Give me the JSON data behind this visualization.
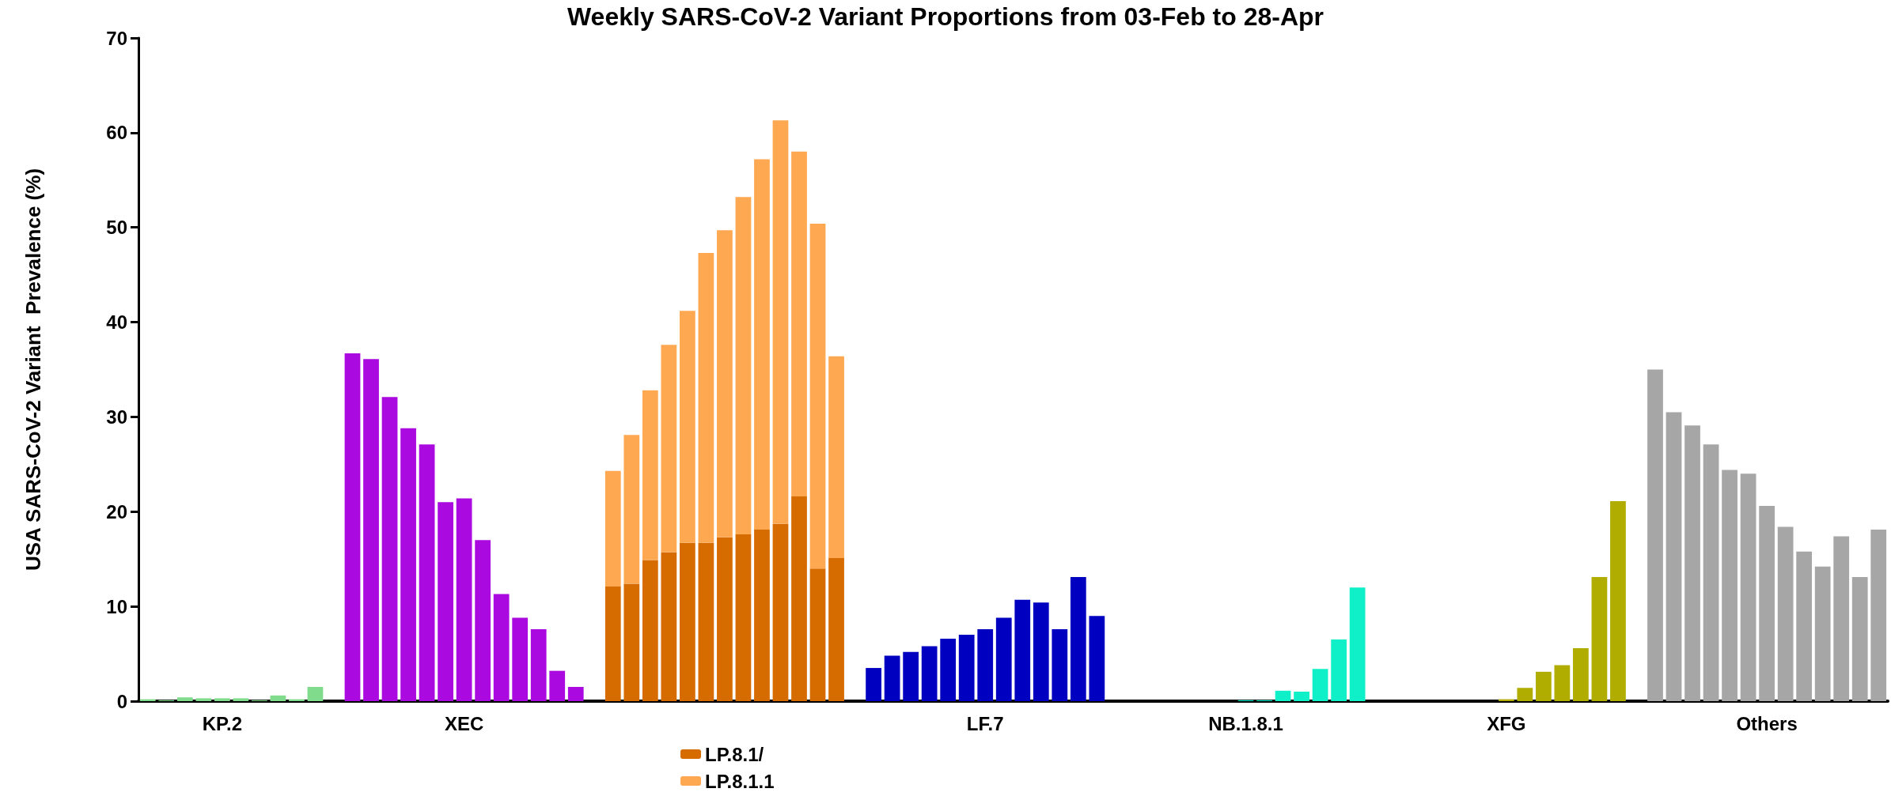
{
  "chart_data": {
    "type": "bar",
    "title": "Weekly SARS-CoV-2 Variant Proportions from 03-Feb to 28-Apr",
    "ylabel": "USA SARS-CoV-2 Variant  Prevalence (%)",
    "categories": [
      null,
      null,
      null,
      null,
      "KP.2",
      null,
      null,
      null,
      null,
      null,
      null,
      null,
      null,
      null,
      null,
      null,
      null,
      "XEC",
      null,
      null,
      null,
      null,
      null,
      null,
      null,
      null,
      null,
      null,
      null,
      null,
      null,
      null,
      null,
      null,
      null,
      null,
      null,
      null,
      null,
      null,
      null,
      null,
      null,
      null,
      null,
      "LF.7",
      null,
      null,
      null,
      null,
      null,
      null,
      null,
      null,
      null,
      null,
      null,
      null,
      null,
      "NB.1.8.1",
      null,
      null,
      null,
      null,
      null,
      null,
      null,
      null,
      null,
      null,
      null,
      null,
      null,
      "XFG",
      null,
      null,
      null,
      null,
      null,
      null,
      null,
      null,
      null,
      null,
      null,
      null,
      null,
      "Others",
      null,
      null,
      null,
      null,
      null,
      null
    ],
    "series": [
      {
        "values": [
          0.2,
          0.1,
          0.4,
          0.3,
          0.3,
          0.3,
          0.1,
          0.6,
          0.2,
          1.5,
          null,
          36.7,
          36.1,
          32.1,
          28.8,
          27.1,
          21.0,
          21.4,
          17.0,
          11.3,
          8.8,
          7.6,
          3.2,
          1.5,
          null,
          null,
          null,
          null,
          null,
          null,
          null,
          null,
          null,
          null,
          null,
          null,
          null,
          null,
          null,
          3.5,
          4.8,
          5.2,
          5.8,
          6.6,
          7.0,
          7.6,
          8.8,
          10.7,
          10.4,
          7.6,
          13.1,
          9.0,
          null,
          0,
          0,
          0,
          0,
          0,
          0,
          0.1,
          0.1,
          1.1,
          1.0,
          3.4,
          6.5,
          12.0,
          null,
          0,
          0,
          0,
          0,
          0,
          0,
          0.2,
          1.4,
          3.1,
          3.8,
          5.6,
          13.1,
          21.1,
          null,
          35.0,
          30.5,
          29.1,
          27.1,
          24.4,
          24.0,
          20.6,
          18.4,
          15.8,
          14.2,
          17.4,
          13.1,
          18.1
        ],
        "colors": [
          "#80dc8c",
          "#80dc8c",
          "#80dc8c",
          "#80dc8c",
          "#80dc8c",
          "#80dc8c",
          "#80dc8c",
          "#80dc8c",
          "#80dc8c",
          "#80dc8c",
          null,
          "#aa0ae0",
          "#aa0ae0",
          "#aa0ae0",
          "#aa0ae0",
          "#aa0ae0",
          "#aa0ae0",
          "#aa0ae0",
          "#aa0ae0",
          "#aa0ae0",
          "#aa0ae0",
          "#aa0ae0",
          "#aa0ae0",
          "#aa0ae0",
          null,
          null,
          null,
          null,
          null,
          null,
          null,
          null,
          null,
          null,
          null,
          null,
          null,
          null,
          null,
          "#0000c0",
          "#0000c0",
          "#0000c0",
          "#0000c0",
          "#0000c0",
          "#0000c0",
          "#0000c0",
          "#0000c0",
          "#0000c0",
          "#0000c0",
          "#0000c0",
          "#0000c0",
          "#0000c0",
          null,
          "#10f0c8",
          "#10f0c8",
          "#10f0c8",
          "#10f0c8",
          "#10f0c8",
          "#10f0c8",
          "#10f0c8",
          "#10f0c8",
          "#10f0c8",
          "#10f0c8",
          "#10f0c8",
          "#10f0c8",
          "#10f0c8",
          null,
          "#b0ad00",
          "#b0ad00",
          "#b0ad00",
          "#b0ad00",
          "#b0ad00",
          "#b0ad00",
          "#b0ad00",
          "#b0ad00",
          "#b0ad00",
          "#b0ad00",
          "#b0ad00",
          "#b0ad00",
          "#b0ad00",
          null,
          "#a6a6a6",
          "#a6a6a6",
          "#a6a6a6",
          "#a6a6a6",
          "#a6a6a6",
          "#a6a6a6",
          "#a6a6a6",
          "#a6a6a6",
          "#a6a6a6",
          "#a6a6a6",
          "#a6a6a6",
          "#a6a6a6",
          "#a6a6a6"
        ]
      },
      {
        "name": "LP.8.1/",
        "color": "#d66c00",
        "values": [
          null,
          null,
          null,
          null,
          null,
          null,
          null,
          null,
          null,
          null,
          null,
          null,
          null,
          null,
          null,
          null,
          null,
          null,
          null,
          null,
          null,
          null,
          null,
          null,
          null,
          12.1,
          12.4,
          14.9,
          15.7,
          16.7,
          16.7,
          17.3,
          17.6,
          18.1,
          18.7,
          21.6,
          14.0,
          15.1,
          null,
          null,
          null,
          null,
          null,
          null,
          null,
          null,
          null,
          null,
          null,
          null,
          null,
          null,
          null,
          null,
          null,
          null,
          null,
          null,
          null,
          null,
          null,
          null,
          null,
          null,
          null,
          null,
          null,
          null,
          null,
          null,
          null,
          null,
          null,
          null,
          null,
          null,
          null,
          null,
          null,
          null,
          null,
          null,
          null,
          null,
          null,
          null,
          null,
          null,
          null,
          null,
          null,
          null,
          null,
          null
        ]
      },
      {
        "name": "LP.8.1.1",
        "color": "#ffa852",
        "values": [
          null,
          null,
          null,
          null,
          null,
          null,
          null,
          null,
          null,
          null,
          null,
          null,
          null,
          null,
          null,
          null,
          null,
          null,
          null,
          null,
          null,
          null,
          null,
          null,
          null,
          12.2,
          15.7,
          17.9,
          21.9,
          24.5,
          30.6,
          32.4,
          35.6,
          39.1,
          42.6,
          36.4,
          36.4,
          21.3,
          null,
          null,
          null,
          null,
          null,
          null,
          null,
          null,
          null,
          null,
          null,
          null,
          null,
          null,
          null,
          null,
          null,
          null,
          null,
          null,
          null,
          null,
          null,
          null,
          null,
          null,
          null,
          null,
          null,
          null,
          null,
          null,
          null,
          null,
          null,
          null,
          null,
          null,
          null,
          null,
          null,
          null,
          null,
          null,
          null,
          null,
          null,
          null,
          null,
          null,
          null,
          null,
          null,
          null,
          null,
          null
        ]
      }
    ],
    "stacked": true,
    "ylim": [
      0,
      70
    ],
    "yticks": [
      0,
      10,
      20,
      30,
      40,
      50,
      60,
      70
    ],
    "grid": false,
    "legend": "bottom"
  }
}
